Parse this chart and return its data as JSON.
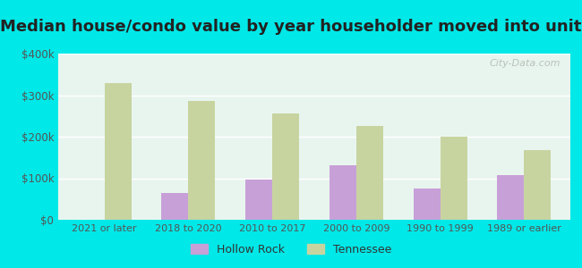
{
  "title": "Median house/condo value by year householder moved into unit",
  "categories": [
    "2021 or later",
    "2018 to 2020",
    "2010 to 2017",
    "2000 to 2009",
    "1990 to 1999",
    "1989 or earlier"
  ],
  "hollow_rock": [
    0,
    65000,
    97000,
    132000,
    75000,
    108000
  ],
  "tennessee": [
    328000,
    287000,
    255000,
    225000,
    200000,
    168000
  ],
  "hollow_rock_color": "#c8a0d8",
  "tennessee_color": "#c8d4a0",
  "background_outer": "#00e8e8",
  "background_inner": "#e8f5ee",
  "bar_width": 0.32,
  "ylim": [
    0,
    400000
  ],
  "yticks": [
    0,
    100000,
    200000,
    300000,
    400000
  ],
  "ytick_labels": [
    "$0",
    "$100k",
    "$200k",
    "$300k",
    "$400k"
  ],
  "legend_labels": [
    "Hollow Rock",
    "Tennessee"
  ],
  "watermark": "City-Data.com",
  "title_fontsize": 13,
  "tick_fontsize": 8,
  "ytick_fontsize": 8.5
}
